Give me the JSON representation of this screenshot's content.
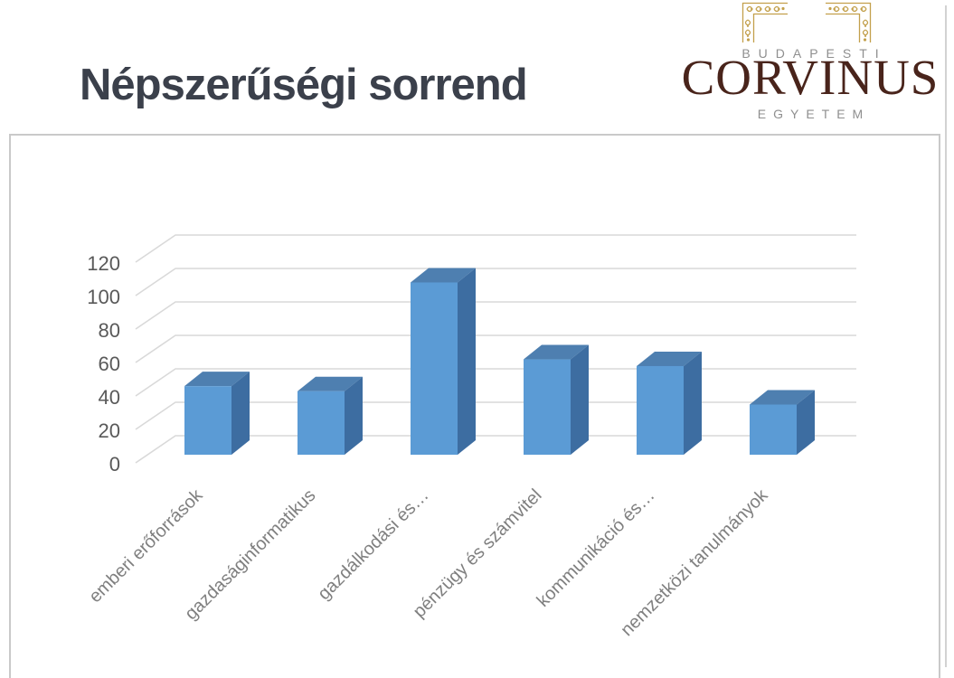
{
  "slide": {
    "title": "Népszerűségi sorrend"
  },
  "logo": {
    "line_top": "BUDAPESTI",
    "name": "CORVINUS",
    "line_bottom": "EGYETEM"
  },
  "chart_data": {
    "type": "bar",
    "variant": "3d-column",
    "title": "",
    "xlabel": "",
    "ylabel": "",
    "categories": [
      "emberi erőforrások",
      "gazdaságinformatikus",
      "gazdálkodási és…",
      "pénzügy és számvitel",
      "kommunikáció és…",
      "nemzetközi tanulmányok"
    ],
    "values": [
      41,
      38,
      103,
      57,
      53,
      30
    ],
    "yticks": [
      0,
      20,
      40,
      60,
      80,
      100,
      120
    ],
    "ylim": [
      0,
      120
    ],
    "grid": true,
    "legend": false,
    "colors": {
      "bar_front": "#5b9bd5",
      "bar_top": "#4e7fb0",
      "bar_side": "#3d6da1",
      "gridline": "#d9d9d9",
      "tick_label": "#595959",
      "category_label": "#7f7f7f"
    }
  },
  "colors": {
    "title": "#3b404b",
    "logo_name": "#49241b",
    "logo_gray": "#8f8f8f",
    "logo_gold": "#c3a04c",
    "chart_border": "#c9c9c9"
  }
}
